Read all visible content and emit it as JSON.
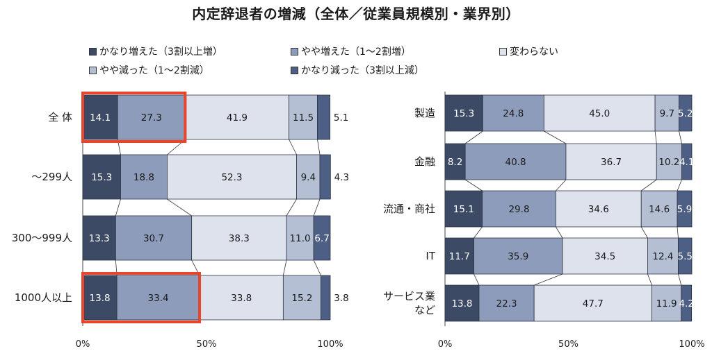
{
  "title": "内定辞退者の増減（全体／従業員規模別・業界別）",
  "legend": [
    {
      "label": "かなり増えた（3割以上増）",
      "color": "#3c4a66"
    },
    {
      "label": "やや増えた（1～2割増）",
      "color": "#8e9cbb"
    },
    {
      "label": "変わらない",
      "color": "#dde2ed"
    },
    {
      "label": "やや減った（1～2割減）",
      "color": "#b4bfd4"
    },
    {
      "label": "かなり減った（3割以上減）",
      "color": "#4d5f85"
    }
  ],
  "chart_data": [
    {
      "type": "bar",
      "stacked": true,
      "orientation": "horizontal",
      "categories": [
        "全 体",
        "～299人",
        "300～999人",
        "1000人以上"
      ],
      "series": [
        {
          "name": "かなり増えた（3割以上増）",
          "values": [
            14.1,
            15.3,
            13.3,
            13.8
          ]
        },
        {
          "name": "やや増えた（1～2割増）",
          "values": [
            27.3,
            18.8,
            30.7,
            33.4
          ]
        },
        {
          "name": "変わらない",
          "values": [
            41.9,
            52.3,
            38.3,
            33.8
          ]
        },
        {
          "name": "やや減った（1～2割減）",
          "values": [
            11.5,
            9.4,
            11.0,
            15.2
          ]
        },
        {
          "name": "かなり減った（3割以上減）",
          "values": [
            5.1,
            4.3,
            6.7,
            3.8
          ]
        }
      ],
      "xticks": [
        "0%",
        "50%",
        "100%"
      ],
      "xlim": [
        0,
        100
      ],
      "highlight": [
        {
          "category": "全 体",
          "from": 0,
          "to": 41.4
        },
        {
          "category": "1000人以上",
          "from": 0,
          "to": 47.2
        }
      ]
    },
    {
      "type": "bar",
      "stacked": true,
      "orientation": "horizontal",
      "categories": [
        "製造",
        "金融",
        "流通・商社",
        "IT",
        "サービス業など"
      ],
      "series": [
        {
          "name": "かなり増えた（3割以上増）",
          "values": [
            15.3,
            8.2,
            15.1,
            11.7,
            13.8
          ]
        },
        {
          "name": "やや増えた（1～2割増）",
          "values": [
            24.8,
            40.8,
            29.8,
            35.9,
            22.3
          ]
        },
        {
          "name": "変わらない",
          "values": [
            45.0,
            36.7,
            34.6,
            34.5,
            47.7
          ]
        },
        {
          "name": "やや減った（1～2割減）",
          "values": [
            9.7,
            10.2,
            14.6,
            12.4,
            11.9
          ]
        },
        {
          "name": "かなり減った（3割以上減）",
          "values": [
            5.2,
            4.1,
            5.9,
            5.5,
            4.2
          ]
        }
      ],
      "xticks": [
        "0%",
        "50%",
        "100%"
      ],
      "xlim": [
        0,
        100
      ]
    }
  ]
}
